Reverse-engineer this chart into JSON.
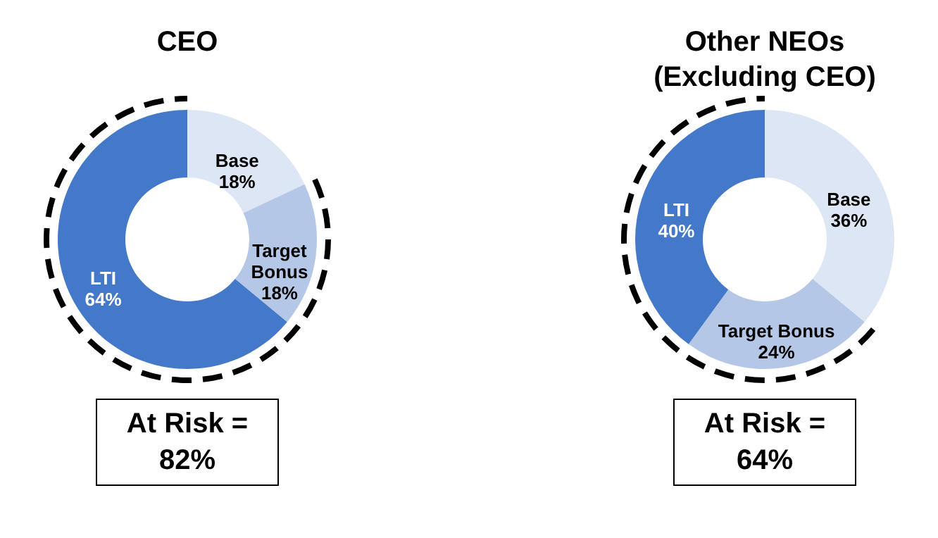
{
  "chart_data": [
    {
      "type": "donut",
      "title": "CEO",
      "categories": [
        "Base",
        "Target Bonus",
        "LTI"
      ],
      "values": [
        18,
        18,
        64
      ],
      "colors": [
        "#dce6f4",
        "#b4c7e7",
        "#4479c9"
      ],
      "value_labels": [
        "18%",
        "18%",
        "64%"
      ],
      "annotations": [
        "At Risk = 82%"
      ]
    },
    {
      "type": "donut",
      "title": "Other NEOs\n(Excluding CEO)",
      "categories": [
        "Base",
        "Target Bonus",
        "LTI"
      ],
      "values": [
        36,
        24,
        40
      ],
      "colors": [
        "#dce6f4",
        "#b4c7e7",
        "#4479c9"
      ],
      "value_labels": [
        "36%",
        "24%",
        "40%"
      ],
      "annotations": [
        "At Risk = 64%"
      ]
    }
  ]
}
